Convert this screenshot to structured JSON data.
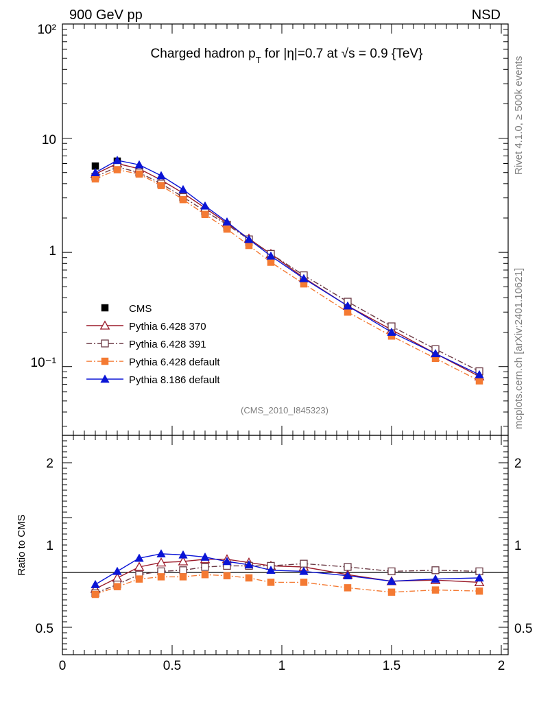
{
  "header": {
    "left": "900 GeV pp",
    "right": "NSD"
  },
  "title": {
    "part1": "Charged hadron p",
    "sub": "T",
    "part2": " for |η|=0.7 at √s = 0.9 {TeV}"
  },
  "analysis_tag": "(CMS_2010_I845323)",
  "side_labels": {
    "rivet": "Rivet 4.1.0, ≥ 500k events",
    "mcplots": "mcplots.cern.ch [arXiv:2401.10621]"
  },
  "chart_data": [
    {
      "type": "scatter",
      "yscale": "log",
      "xlim": [
        0,
        2
      ],
      "ylim": [
        0.025,
        100
      ],
      "y_tick_labels": [
        "10⁻¹",
        "1",
        "10",
        "10²"
      ],
      "x": [
        0.15,
        0.25,
        0.35,
        0.45,
        0.55,
        0.65,
        0.75,
        0.85,
        0.95,
        1.1,
        1.3,
        1.5,
        1.7,
        1.9
      ],
      "series": [
        {
          "name": "CMS",
          "color": "#000000",
          "marker": "filled-square",
          "line": "none",
          "values": [
            5.7,
            6.3,
            5.1,
            3.95,
            3.0,
            2.2,
            1.65,
            1.22,
            0.9,
            0.58,
            0.35,
            0.225,
            0.14,
            0.09
          ]
        },
        {
          "name": "Pythia 6.428 370",
          "color": "#9b1b2a",
          "marker": "open-triangle",
          "line": "solid",
          "values": [
            4.85,
            6.0,
            5.4,
            4.3,
            3.3,
            2.45,
            1.8,
            1.32,
            0.97,
            0.6,
            0.34,
            0.21,
            0.13,
            0.082
          ]
        },
        {
          "name": "Pythia 6.428 391",
          "color": "#6b3a45",
          "marker": "open-square",
          "line": "dashdot",
          "values": [
            4.6,
            5.6,
            5.0,
            4.0,
            3.05,
            2.3,
            1.75,
            1.3,
            0.97,
            0.63,
            0.37,
            0.225,
            0.142,
            0.091
          ]
        },
        {
          "name": "Pythia 6.428 default",
          "color": "#f47a33",
          "marker": "filled-square",
          "line": "dashdot",
          "values": [
            4.4,
            5.3,
            4.85,
            3.85,
            2.9,
            2.15,
            1.6,
            1.15,
            0.82,
            0.53,
            0.3,
            0.185,
            0.118,
            0.075
          ]
        },
        {
          "name": "Pythia 8.186 default",
          "color": "#0a14d6",
          "marker": "filled-triangle",
          "line": "solid",
          "values": [
            5.0,
            6.4,
            5.85,
            4.7,
            3.55,
            2.55,
            1.85,
            1.3,
            0.93,
            0.59,
            0.34,
            0.2,
            0.13,
            0.085
          ]
        }
      ]
    },
    {
      "type": "scatter",
      "ylabel": "Ratio to CMS",
      "xlim": [
        0,
        2
      ],
      "ylim": [
        0.25,
        2.25
      ],
      "x_tick_labels": [
        "0",
        "0.5",
        "1",
        "1.5",
        "2"
      ],
      "y_tick_labels": [
        "0.5",
        "1",
        "2"
      ],
      "reference_line": 1,
      "x": [
        0.15,
        0.25,
        0.35,
        0.45,
        0.55,
        0.65,
        0.75,
        0.85,
        0.95,
        1.1,
        1.3,
        1.5,
        1.7,
        1.9
      ],
      "series": [
        {
          "name": "Pythia 6.428 370",
          "values": [
            0.85,
            0.95,
            1.05,
            1.09,
            1.1,
            1.12,
            1.12,
            1.09,
            1.06,
            1.05,
            0.98,
            0.92,
            0.93,
            0.91
          ]
        },
        {
          "name": "Pythia 6.428 391",
          "values": [
            0.81,
            0.89,
            0.98,
            1.01,
            1.02,
            1.05,
            1.06,
            1.06,
            1.06,
            1.08,
            1.05,
            1.01,
            1.02,
            1.01
          ]
        },
        {
          "name": "Pythia 6.428 default",
          "values": [
            0.8,
            0.87,
            0.94,
            0.96,
            0.96,
            0.98,
            0.97,
            0.95,
            0.91,
            0.91,
            0.86,
            0.82,
            0.84,
            0.83
          ]
        },
        {
          "name": "Pythia 8.186 default",
          "values": [
            0.89,
            1.01,
            1.13,
            1.17,
            1.16,
            1.14,
            1.1,
            1.07,
            1.02,
            1.01,
            0.97,
            0.92,
            0.94,
            0.95
          ]
        }
      ]
    }
  ]
}
